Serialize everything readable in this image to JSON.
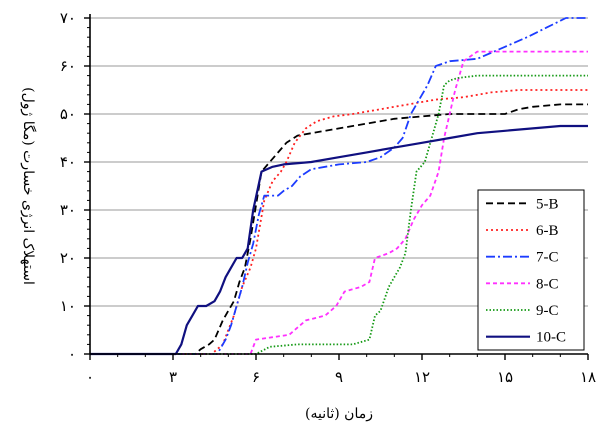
{
  "chart_data": {
    "type": "line",
    "xlabel": "زمان (ثانیه)",
    "ylabel": "استهلاک انرژی خسارت (مگا ژول)",
    "xlim": [
      0,
      18
    ],
    "ylim": [
      0,
      70
    ],
    "x_ticks": [
      0,
      3,
      6,
      9,
      12,
      15,
      18
    ],
    "x_tick_labels": [
      "۰",
      "۳",
      "۶",
      "۹",
      "۱۲",
      "۱۵",
      "۱۸"
    ],
    "y_ticks": [
      0,
      10,
      20,
      30,
      40,
      50,
      60,
      70
    ],
    "y_tick_labels": [
      "۰",
      "۱۰",
      "۲۰",
      "۳۰",
      "۴۰",
      "۵۰",
      "۶۰",
      "۷۰"
    ],
    "grid": {
      "horizontal": true,
      "vertical": false
    },
    "legend_position": "right",
    "series": [
      {
        "name": "5-B",
        "color": "#000000",
        "dash": "7,4",
        "points": [
          [
            0,
            0
          ],
          [
            3.8,
            0
          ],
          [
            4.0,
            1
          ],
          [
            4.3,
            2
          ],
          [
            4.5,
            3
          ],
          [
            4.8,
            7
          ],
          [
            5.0,
            9
          ],
          [
            5.2,
            11
          ],
          [
            5.4,
            15
          ],
          [
            5.6,
            18
          ],
          [
            5.8,
            24
          ],
          [
            6.0,
            31
          ],
          [
            6.2,
            38
          ],
          [
            6.5,
            40
          ],
          [
            6.8,
            42
          ],
          [
            7.1,
            44
          ],
          [
            7.5,
            45.5
          ],
          [
            8.0,
            46
          ],
          [
            9.0,
            47
          ],
          [
            10.0,
            48
          ],
          [
            11.0,
            49
          ],
          [
            12.0,
            49.5
          ],
          [
            13.0,
            50
          ],
          [
            14.0,
            50
          ],
          [
            15.0,
            50
          ],
          [
            15.5,
            51
          ],
          [
            16.0,
            51.5
          ],
          [
            17.0,
            52
          ],
          [
            18.0,
            52
          ]
        ]
      },
      {
        "name": "6-B",
        "color": "#ff2020",
        "dash": "2,3",
        "points": [
          [
            0,
            0
          ],
          [
            4.4,
            0
          ],
          [
            4.8,
            2
          ],
          [
            5.0,
            5
          ],
          [
            5.2,
            8
          ],
          [
            5.5,
            14
          ],
          [
            5.8,
            18
          ],
          [
            6.0,
            22
          ],
          [
            6.3,
            32
          ],
          [
            6.6,
            36
          ],
          [
            6.9,
            38
          ],
          [
            7.1,
            40
          ],
          [
            7.4,
            44
          ],
          [
            7.8,
            47
          ],
          [
            8.2,
            48.5
          ],
          [
            8.8,
            49.5
          ],
          [
            9.5,
            50
          ],
          [
            10.5,
            51
          ],
          [
            11.5,
            52
          ],
          [
            12.5,
            53
          ],
          [
            13.5,
            53.5
          ],
          [
            14.5,
            54.5
          ],
          [
            15.5,
            55
          ],
          [
            16.5,
            55
          ],
          [
            18.0,
            55
          ]
        ]
      },
      {
        "name": "7-C",
        "color": "#1c3cff",
        "dash": "9,3,2,3",
        "points": [
          [
            0,
            0
          ],
          [
            4.6,
            0
          ],
          [
            4.9,
            3
          ],
          [
            5.1,
            6
          ],
          [
            5.3,
            10
          ],
          [
            5.5,
            14
          ],
          [
            5.7,
            19
          ],
          [
            5.9,
            23
          ],
          [
            6.1,
            29
          ],
          [
            6.3,
            33
          ],
          [
            6.8,
            33
          ],
          [
            7.0,
            34
          ],
          [
            7.3,
            35
          ],
          [
            7.6,
            37
          ],
          [
            8.0,
            38.5
          ],
          [
            9.0,
            39.5
          ],
          [
            10.0,
            40
          ],
          [
            10.5,
            41
          ],
          [
            11.0,
            43
          ],
          [
            11.3,
            45
          ],
          [
            11.6,
            50
          ],
          [
            11.9,
            53
          ],
          [
            12.2,
            56
          ],
          [
            12.5,
            60
          ],
          [
            13.0,
            61
          ],
          [
            14.0,
            61.5
          ],
          [
            15.0,
            64
          ],
          [
            15.8,
            66
          ],
          [
            16.5,
            68
          ],
          [
            17.2,
            70
          ],
          [
            18.0,
            70
          ]
        ]
      },
      {
        "name": "8-C",
        "color": "#ff30ff",
        "dash": "4,3",
        "points": [
          [
            0,
            0
          ],
          [
            5.8,
            0
          ],
          [
            6.0,
            3
          ],
          [
            6.6,
            3.5
          ],
          [
            7.2,
            4
          ],
          [
            7.8,
            7
          ],
          [
            8.5,
            8
          ],
          [
            8.9,
            10
          ],
          [
            9.2,
            13
          ],
          [
            9.8,
            14
          ],
          [
            10.1,
            15
          ],
          [
            10.3,
            20
          ],
          [
            10.8,
            21
          ],
          [
            11.1,
            22
          ],
          [
            11.4,
            24
          ],
          [
            11.7,
            28
          ],
          [
            12.0,
            31
          ],
          [
            12.3,
            33
          ],
          [
            12.6,
            38
          ],
          [
            12.8,
            45
          ],
          [
            13.0,
            50
          ],
          [
            13.2,
            55
          ],
          [
            13.5,
            61
          ],
          [
            14.0,
            63
          ],
          [
            18.0,
            63
          ]
        ]
      },
      {
        "name": "9-C",
        "color": "#149914",
        "dash": "1.5,2",
        "points": [
          [
            0,
            0
          ],
          [
            6.0,
            0
          ],
          [
            6.5,
            1.5
          ],
          [
            7.5,
            2
          ],
          [
            8.5,
            2
          ],
          [
            9.5,
            2
          ],
          [
            10.1,
            3
          ],
          [
            10.3,
            8
          ],
          [
            10.5,
            9
          ],
          [
            10.8,
            14
          ],
          [
            11.0,
            16
          ],
          [
            11.2,
            18
          ],
          [
            11.4,
            21
          ],
          [
            11.6,
            30
          ],
          [
            11.8,
            38
          ],
          [
            12.1,
            40
          ],
          [
            12.4,
            46
          ],
          [
            12.6,
            50
          ],
          [
            12.8,
            56
          ],
          [
            13.0,
            57
          ],
          [
            13.3,
            57.5
          ],
          [
            14.0,
            58
          ],
          [
            15.0,
            58
          ],
          [
            16.0,
            58
          ],
          [
            18.0,
            58
          ]
        ]
      },
      {
        "name": "10-C",
        "color": "#101080",
        "dash": "",
        "points": [
          [
            0,
            0
          ],
          [
            3.1,
            0
          ],
          [
            3.3,
            2
          ],
          [
            3.5,
            6
          ],
          [
            3.7,
            8
          ],
          [
            3.9,
            10
          ],
          [
            4.2,
            10
          ],
          [
            4.5,
            11
          ],
          [
            4.7,
            13
          ],
          [
            4.9,
            16
          ],
          [
            5.1,
            18
          ],
          [
            5.3,
            20
          ],
          [
            5.5,
            20
          ],
          [
            5.7,
            22
          ],
          [
            5.9,
            30
          ],
          [
            6.2,
            38
          ],
          [
            6.6,
            39
          ],
          [
            7.0,
            39.5
          ],
          [
            8.0,
            40
          ],
          [
            9.0,
            41
          ],
          [
            10.0,
            42
          ],
          [
            11.0,
            43
          ],
          [
            12.0,
            44
          ],
          [
            13.0,
            45
          ],
          [
            14.0,
            46
          ],
          [
            15.0,
            46.5
          ],
          [
            16.0,
            47
          ],
          [
            17.0,
            47.5
          ],
          [
            18.0,
            47.5
          ]
        ]
      }
    ]
  }
}
